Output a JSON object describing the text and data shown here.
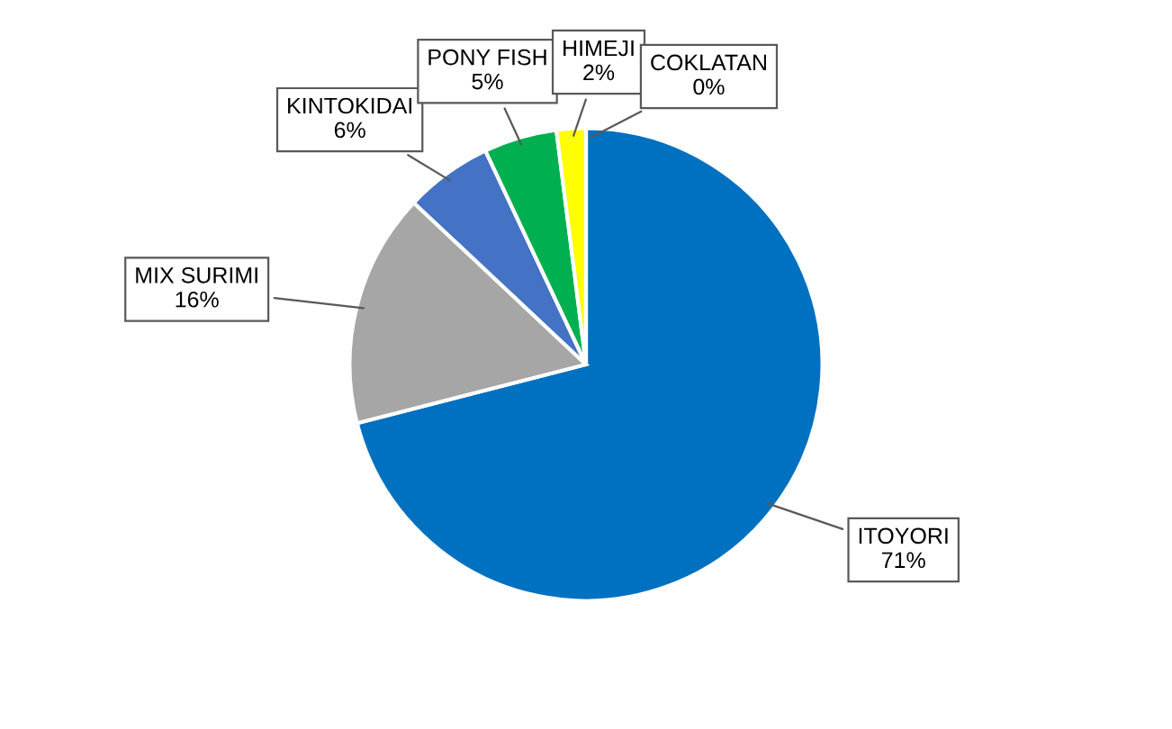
{
  "chart_data": {
    "type": "pie",
    "categories": [
      "ITOYORI",
      "MIX SURIMI",
      "KINTOKIDAI",
      "PONY FISH",
      "HIMEJI",
      "COKLATAN"
    ],
    "values": [
      71,
      16,
      6,
      5,
      2,
      0
    ],
    "value_labels": [
      "71%",
      "16%",
      "6%",
      "5%",
      "2%",
      "0%"
    ],
    "colors": [
      "#0070c0",
      "#a6a6a6",
      "#4472c4",
      "#00b050",
      "#ffff00",
      "#ed7d31"
    ],
    "legend": false
  }
}
